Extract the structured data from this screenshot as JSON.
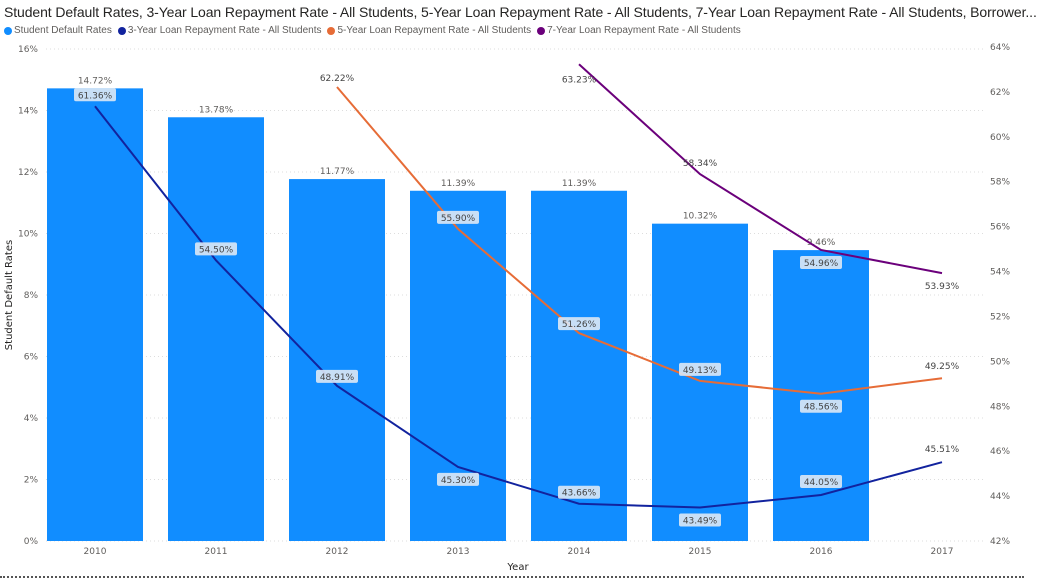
{
  "chart_data": {
    "type": "bar",
    "title": "Student Default Rates, 3-Year Loan Repayment Rate - All Students, 5-Year Loan Repayment Rate - All Students, 7-Year Loan Repayment Rate - All Students, Borrower...",
    "xlabel": "Year",
    "ylabel": "Student Default Rates",
    "categories": [
      "2010",
      "2011",
      "2012",
      "2013",
      "2014",
      "2015",
      "2016",
      "2017"
    ],
    "ylim": [
      0,
      16
    ],
    "yticks": [
      "0%",
      "2%",
      "4%",
      "6%",
      "8%",
      "10%",
      "12%",
      "14%",
      "16%"
    ],
    "y2lim": [
      42,
      64
    ],
    "y2ticks": [
      "42%",
      "44%",
      "46%",
      "48%",
      "50%",
      "52%",
      "54%",
      "56%",
      "58%",
      "60%",
      "62%",
      "64%"
    ],
    "grid": true,
    "legend_position": "top-left",
    "bars": {
      "name": "Student Default Rates",
      "color": "#118DFF",
      "values": [
        14.72,
        13.78,
        11.77,
        11.39,
        11.39,
        10.32,
        9.46,
        null
      ],
      "labels": [
        "14.72%",
        "13.78%",
        "11.77%",
        "11.39%",
        "11.39%",
        "10.32%",
        "9.46%",
        ""
      ]
    },
    "series": [
      {
        "name": "3-Year Loan Repayment Rate - All Students",
        "color": "#12239E",
        "axis": "right",
        "values": [
          61.36,
          54.5,
          48.91,
          45.3,
          43.66,
          43.49,
          44.05,
          45.51
        ],
        "labels": [
          "61.36%",
          "54.50%",
          "48.91%",
          "45.30%",
          "43.66%",
          "43.49%",
          "44.05%",
          "45.51%"
        ]
      },
      {
        "name": "5-Year Loan Repayment Rate - All Students",
        "color": "#E66C37",
        "axis": "right",
        "values": [
          null,
          null,
          62.22,
          55.9,
          51.26,
          49.13,
          48.56,
          49.25
        ],
        "labels": [
          "",
          "",
          "62.22%",
          "55.90%",
          "51.26%",
          "49.13%",
          "48.56%",
          "49.25%"
        ]
      },
      {
        "name": "7-Year Loan Repayment Rate - All Students",
        "color": "#6B007B",
        "axis": "right",
        "values": [
          null,
          null,
          null,
          null,
          63.23,
          58.34,
          54.96,
          53.93
        ],
        "labels": [
          "",
          "",
          "",
          "",
          "63.23%",
          "58.34%",
          "54.96%",
          "53.93%"
        ]
      }
    ]
  }
}
